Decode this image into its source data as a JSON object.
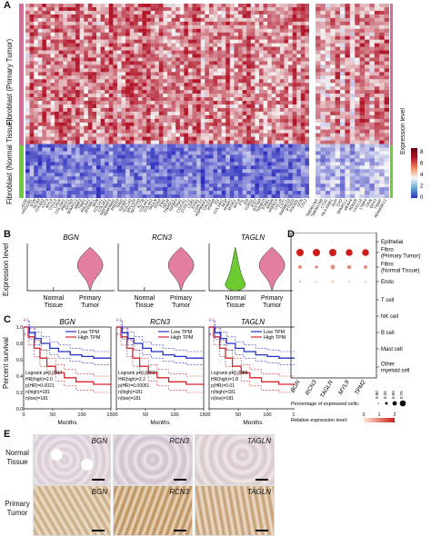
{
  "panels": {
    "a": "A",
    "b": "B",
    "c": "C",
    "d": "D",
    "e": "E"
  },
  "panel_a": {
    "row_groups": [
      "Fibroblast (Primary Tumor)",
      "Fibroblast (Normal Tissue)"
    ],
    "genes_left": [
      "RGS5",
      "HSD11B1",
      "GSN",
      "RCN3",
      "COL6A2",
      "CST3",
      "MYL9",
      "CXCL2",
      "CALR",
      "COL15A1",
      "PRDX1",
      "IFITM3",
      "SPARCL1",
      "MMP2",
      "TIMP1",
      "PHLDA1",
      "ZFP36L1",
      "BGN",
      "COL1A1",
      "COL3A1",
      "NGFRAP1",
      "SERPINH1",
      "PRDX2",
      "TPM2",
      "IGFBP7",
      "COL1A2",
      "MYL12A",
      "NOTCH3",
      "ACTB",
      "COL4A1",
      "COL4A2",
      "TAGLN",
      "SOX4",
      "ENG",
      "SELM",
      "TINAGL1",
      "IGFBP3",
      "TPM1",
      "COX7A1",
      "CCDC71",
      "CD81",
      "ECM1",
      "LGALS1",
      "HSP90AA1",
      "CALD1",
      "HSPA8",
      "ID1",
      "COL18A1",
      "MGP",
      "SPARC",
      "MYH11",
      "MYL6",
      "FTL",
      "ID3",
      "CDH11",
      "IFI27",
      "GSTM3",
      "TMSB10",
      "STAB1",
      "SRGN",
      "HSPA1A",
      "CCL19",
      "CST1",
      "RARRES2",
      "PTGDS",
      "POLR2L",
      "DCN",
      "CCL2"
    ],
    "genes_right": [
      "TMEM176A",
      "TMEM176B",
      "CTSC",
      "HLA-DRB1",
      "SLPI",
      "CFD",
      "SPARCL1",
      "MFAP4",
      "ADH1B",
      "CXCL14",
      "LTBP4",
      "OGN",
      "GPX3",
      "TXNIP",
      "ADAMDEC1"
    ],
    "colorbar_title": "Expression level",
    "colorbar_ticks": [
      "8",
      "6",
      "4",
      "2",
      "0"
    ],
    "colors": {
      "high": "#b2182b",
      "mid": "#f7f7f7",
      "low": "#2c2fbe",
      "tumor_bar": "#d96b9a",
      "normal_bar": "#6ccc3a"
    }
  },
  "panel_b": {
    "ylabel": "Expression level",
    "genes": [
      "BGN",
      "RCN3",
      "TAGLN"
    ],
    "xcats": [
      "Normal Tissue",
      "Primary Tumor"
    ],
    "colors": {
      "tumor": "#e37ea3",
      "normal_tagln": "#6bcb2f"
    }
  },
  "panel_c": {
    "ylabel": "Percent survival",
    "xlabel": "Months",
    "legend": [
      "Low TPM",
      "High TPM"
    ],
    "colors": {
      "low": "#2430c8",
      "high": "#d8242a"
    },
    "xticks": [
      "0",
      "50",
      "100",
      "150"
    ],
    "yticks": [
      "0.0",
      "0.2",
      "0.4",
      "0.6",
      "0.8",
      "1.0"
    ],
    "plots": [
      {
        "gene": "BGN",
        "stats": [
          "Logrank p=0.0017",
          "HR(high)=2.0",
          "p(HR)=0.0021",
          "n(high)=181",
          "n(low)=181"
        ]
      },
      {
        "gene": "RCN3",
        "stats": [
          "Logrank p=0.00037",
          "HR(high)=2.2",
          "p(HR)=0.00051",
          "n(high)=181",
          "n(low)=181"
        ]
      },
      {
        "gene": "TAGLN",
        "stats": [
          "Logrank p=0.0089",
          "HR(high)=1.8",
          "p(HR)=0.01",
          "n(high)=181",
          "n(low)=181"
        ]
      }
    ]
  },
  "panel_d": {
    "rows": [
      "Epithelial",
      "Fibro (Primary Tumor)",
      "Fibro (Normal Tissue)",
      "Endo",
      "T cell",
      "NK cell",
      "B cell",
      "Mast cell",
      "Other myeloid cell"
    ],
    "cols": [
      "BGN",
      "RCN3",
      "TAGLN",
      "MYL9",
      "TPM2"
    ],
    "size_legend_title": "Percentage of expressed cells:",
    "size_legend_ticks": [
      "0.00",
      "0.25",
      "0.50",
      "0.75"
    ],
    "color_legend_title": "Relative expression level:",
    "color_legend_ticks": [
      "0",
      "1",
      "2"
    ],
    "colors": {
      "low": "#fde6d2",
      "high": "#cc1f1a"
    }
  },
  "panel_e": {
    "rows": [
      "Normal Tissue",
      "Primary Tumor"
    ],
    "genes": [
      "BGN",
      "RCN3",
      "TAGLN"
    ]
  }
}
